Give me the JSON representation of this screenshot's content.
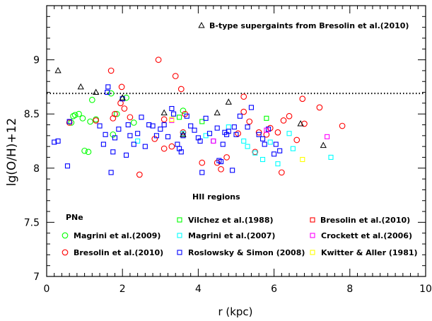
{
  "chart_data": {
    "type": "scatter",
    "xlabel": "r (kpc)",
    "ylabel": "lg(O/H)+12",
    "xlim": [
      0,
      10
    ],
    "ylim": [
      7,
      9.5
    ],
    "x_ticks": [
      "0",
      "2",
      "4",
      "6",
      "8",
      "10"
    ],
    "y_ticks": [
      "7",
      "7.5",
      "8",
      "8.5",
      "9"
    ],
    "grid": false,
    "reference_line": {
      "y": 8.69,
      "style": "dotted"
    },
    "legend": {
      "placement": "bottom",
      "group_pne": "PNe",
      "group_hii": "HII regions",
      "top_right_entry": "B-type supergaints from Bresolin et al.(2010)"
    },
    "series": [
      {
        "name": "Magrini et al.(2009)",
        "group": "PNe",
        "marker": "circle",
        "color": "#00ff00",
        "points": [
          [
            0.65,
            8.42
          ],
          [
            0.7,
            8.48
          ],
          [
            0.75,
            8.49
          ],
          [
            0.85,
            8.5
          ],
          [
            0.95,
            8.46
          ],
          [
            1.0,
            8.16
          ],
          [
            1.1,
            8.15
          ],
          [
            1.15,
            8.43
          ],
          [
            1.2,
            8.63
          ],
          [
            1.3,
            8.45
          ],
          [
            1.7,
            8.69
          ],
          [
            1.75,
            8.31
          ],
          [
            1.85,
            8.5
          ],
          [
            2.3,
            8.42
          ],
          [
            3.6,
            8.53
          ],
          [
            2.1,
            8.65
          ]
        ]
      },
      {
        "name": "Bresolin et al.(2010)",
        "group": "PNe",
        "marker": "circle",
        "color": "#ff0000",
        "points": [
          [
            0.6,
            8.42
          ],
          [
            1.3,
            8.44
          ],
          [
            1.7,
            8.9
          ],
          [
            1.75,
            8.46
          ],
          [
            1.8,
            8.5
          ],
          [
            1.95,
            8.6
          ],
          [
            1.98,
            8.75
          ],
          [
            2.05,
            8.55
          ],
          [
            2.2,
            8.47
          ],
          [
            2.45,
            7.94
          ],
          [
            2.85,
            8.27
          ],
          [
            2.95,
            9.0
          ],
          [
            3.1,
            8.45
          ],
          [
            3.1,
            8.18
          ],
          [
            3.3,
            8.2
          ],
          [
            3.4,
            8.85
          ],
          [
            3.55,
            8.73
          ],
          [
            3.6,
            8.33
          ],
          [
            3.65,
            8.5
          ],
          [
            4.1,
            8.05
          ],
          [
            4.5,
            8.05
          ],
          [
            4.6,
            7.99
          ],
          [
            4.75,
            8.1
          ],
          [
            5.05,
            8.32
          ],
          [
            5.2,
            8.66
          ],
          [
            5.2,
            8.52
          ],
          [
            5.35,
            8.43
          ],
          [
            5.5,
            8.15
          ],
          [
            5.6,
            8.33
          ],
          [
            5.8,
            8.31
          ],
          [
            5.9,
            8.37
          ],
          [
            6.1,
            8.33
          ],
          [
            6.2,
            7.96
          ],
          [
            6.25,
            8.44
          ],
          [
            6.4,
            8.48
          ],
          [
            6.6,
            8.26
          ],
          [
            6.75,
            8.64
          ],
          [
            6.8,
            8.41
          ],
          [
            7.2,
            8.56
          ],
          [
            7.8,
            8.39
          ]
        ]
      },
      {
        "name": "Vilchez et al.(1988)",
        "group": "HII regions",
        "marker": "square",
        "color": "#00ff00",
        "points": [
          [
            3.5,
            8.47
          ],
          [
            4.1,
            8.43
          ],
          [
            5.8,
            8.46
          ]
        ]
      },
      {
        "name": "Magrini et al.(2007)",
        "group": "HII regions",
        "marker": "square",
        "color": "#00ffff",
        "points": [
          [
            2.4,
            8.25
          ],
          [
            3.6,
            8.32
          ],
          [
            4.2,
            8.3
          ],
          [
            4.8,
            8.38
          ],
          [
            5.2,
            8.25
          ],
          [
            5.3,
            8.2
          ],
          [
            5.5,
            8.14
          ],
          [
            5.7,
            8.08
          ],
          [
            5.9,
            8.24
          ],
          [
            6.1,
            8.04
          ],
          [
            6.4,
            8.32
          ],
          [
            6.5,
            8.18
          ],
          [
            7.5,
            8.1
          ]
        ]
      },
      {
        "name": "Roslowsky & Simon (2008)",
        "group": "HII regions",
        "marker": "square",
        "color": "#0000ff",
        "points": [
          [
            0.2,
            8.24
          ],
          [
            0.3,
            8.25
          ],
          [
            0.55,
            8.02
          ],
          [
            0.6,
            8.43
          ],
          [
            1.4,
            8.39
          ],
          [
            1.5,
            8.22
          ],
          [
            1.55,
            8.31
          ],
          [
            1.6,
            8.7
          ],
          [
            1.62,
            8.75
          ],
          [
            1.7,
            7.96
          ],
          [
            1.75,
            8.15
          ],
          [
            1.8,
            8.28
          ],
          [
            1.9,
            8.36
          ],
          [
            2.0,
            8.64
          ],
          [
            2.1,
            8.12
          ],
          [
            2.15,
            8.4
          ],
          [
            2.2,
            8.3
          ],
          [
            2.3,
            8.22
          ],
          [
            2.4,
            8.32
          ],
          [
            2.5,
            8.47
          ],
          [
            2.6,
            8.2
          ],
          [
            2.7,
            8.4
          ],
          [
            2.8,
            8.39
          ],
          [
            2.9,
            8.3
          ],
          [
            3.0,
            8.36
          ],
          [
            3.1,
            8.4
          ],
          [
            3.2,
            8.29
          ],
          [
            3.3,
            8.55
          ],
          [
            3.35,
            8.5
          ],
          [
            3.45,
            8.22
          ],
          [
            3.5,
            8.18
          ],
          [
            3.55,
            8.15
          ],
          [
            3.6,
            8.3
          ],
          [
            3.7,
            8.48
          ],
          [
            3.8,
            8.39
          ],
          [
            3.9,
            8.35
          ],
          [
            4.0,
            8.28
          ],
          [
            4.05,
            8.25
          ],
          [
            4.1,
            7.96
          ],
          [
            4.2,
            8.46
          ],
          [
            4.3,
            8.32
          ],
          [
            4.4,
            8.25
          ],
          [
            4.5,
            8.37
          ],
          [
            4.55,
            8.07
          ],
          [
            4.6,
            8.06
          ],
          [
            4.65,
            8.22
          ],
          [
            4.7,
            8.33
          ],
          [
            4.75,
            8.31
          ],
          [
            4.8,
            8.34
          ],
          [
            4.9,
            7.98
          ],
          [
            4.95,
            8.38
          ],
          [
            5.0,
            8.31
          ],
          [
            5.1,
            8.48
          ],
          [
            5.3,
            8.38
          ],
          [
            5.4,
            8.56
          ],
          [
            5.6,
            8.31
          ],
          [
            5.7,
            8.27
          ],
          [
            5.75,
            8.22
          ],
          [
            5.85,
            8.36
          ],
          [
            6.0,
            8.13
          ],
          [
            6.05,
            8.22
          ],
          [
            6.15,
            8.16
          ]
        ]
      },
      {
        "name": "Crockett et al.(2006)",
        "group": "HII regions",
        "marker": "square",
        "color": "#ff00ff",
        "points": [
          [
            3.3,
            8.44
          ],
          [
            4.4,
            8.25
          ],
          [
            5.8,
            8.35
          ],
          [
            7.4,
            8.29
          ]
        ]
      },
      {
        "name": "Kwitter & Aller (1981)",
        "group": "HII regions",
        "marker": "square",
        "color": "#ffff00",
        "points": [
          [
            3.3,
            8.45
          ],
          [
            6.75,
            8.08
          ]
        ]
      },
      {
        "name": "B-type supergaints from Bresolin et al.(2010)",
        "group": "other",
        "marker": "triangle",
        "color": "#000000",
        "points": [
          [
            0.3,
            8.9
          ],
          [
            0.9,
            8.75
          ],
          [
            1.3,
            8.7
          ],
          [
            2.0,
            8.65
          ],
          [
            3.1,
            8.51
          ],
          [
            3.6,
            8.31
          ],
          [
            4.5,
            8.51
          ],
          [
            4.8,
            8.61
          ],
          [
            6.7,
            8.41
          ],
          [
            7.3,
            8.21
          ]
        ]
      }
    ]
  }
}
